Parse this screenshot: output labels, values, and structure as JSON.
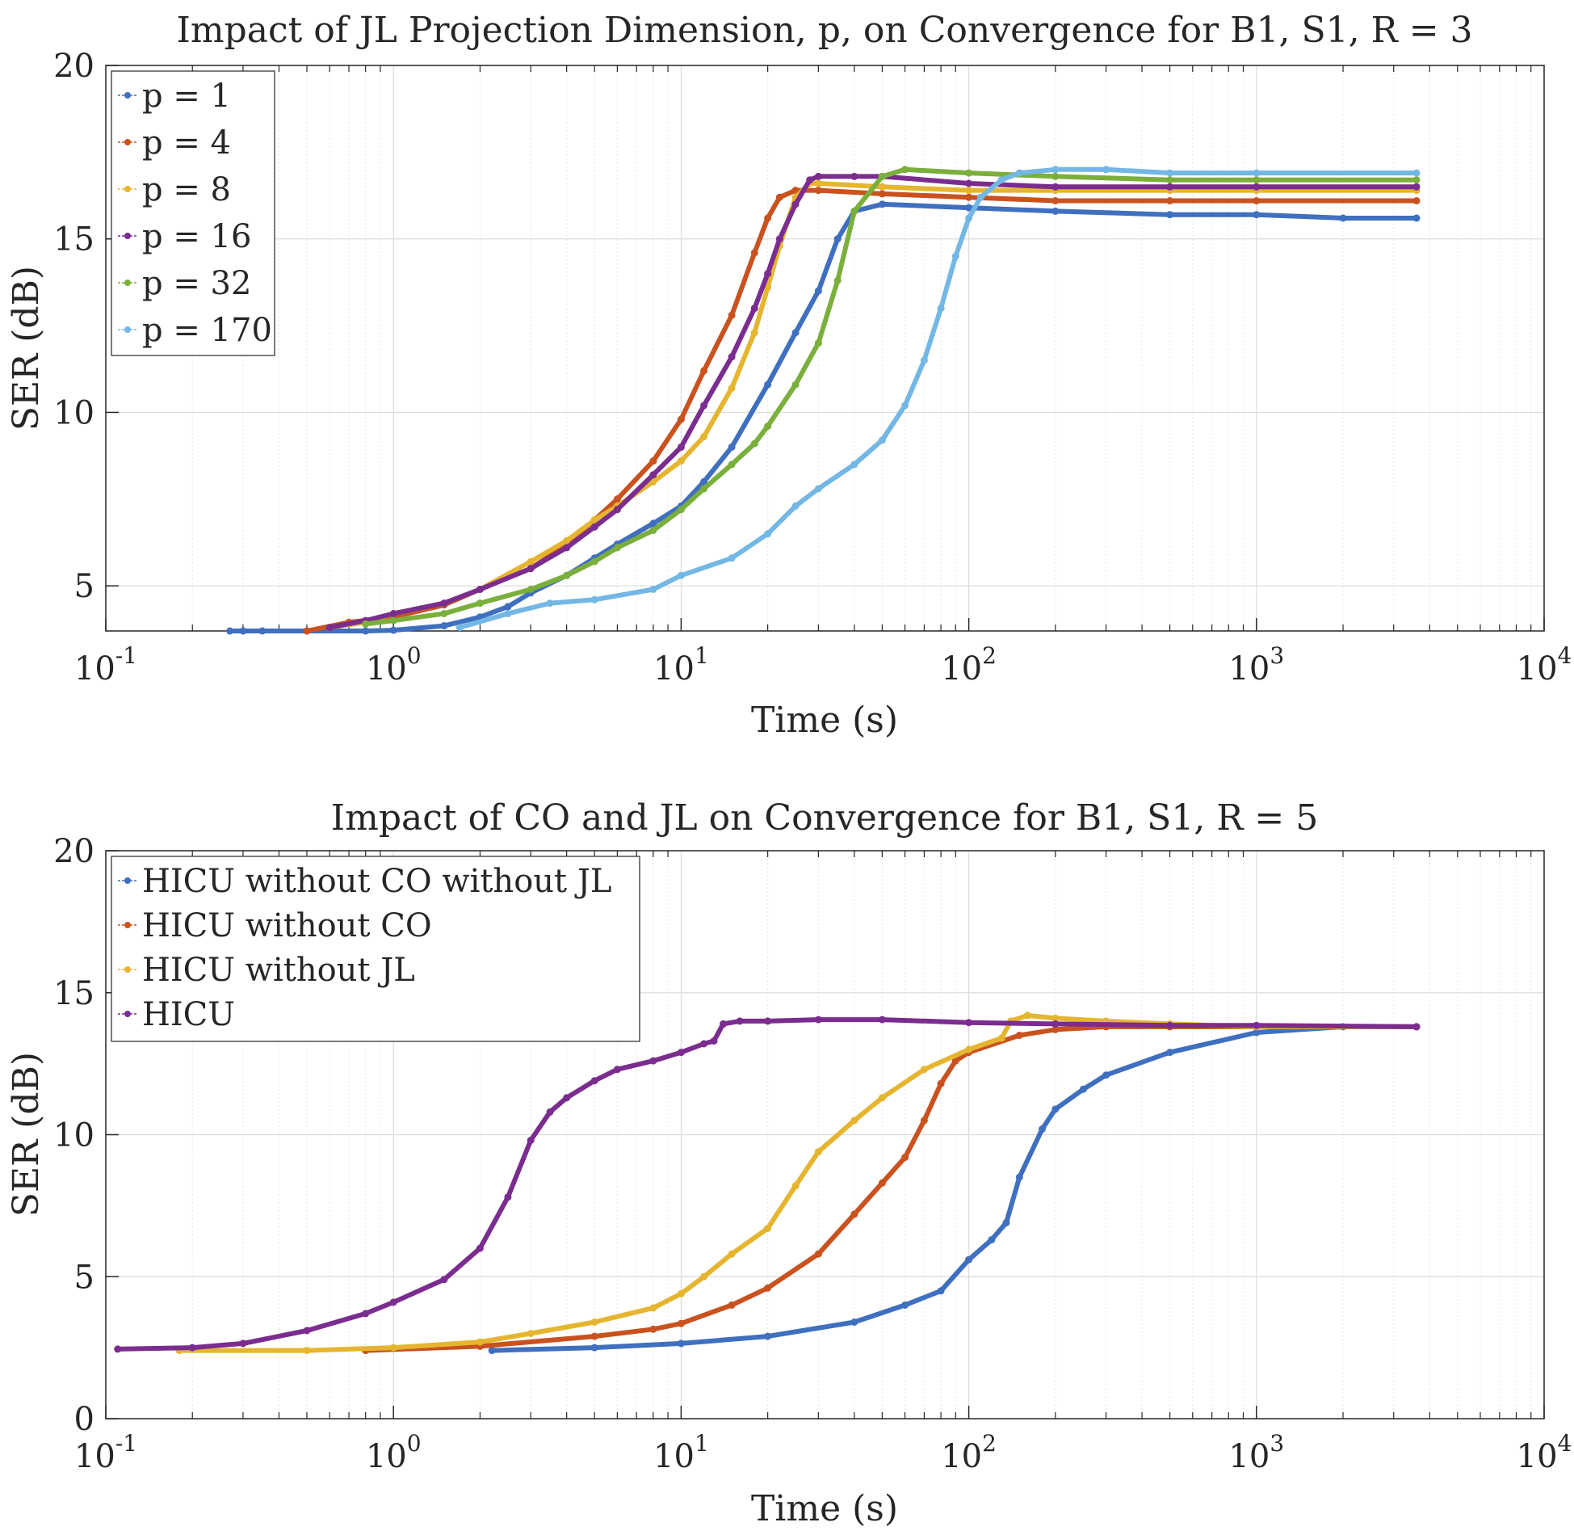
{
  "chart_data": [
    {
      "type": "line",
      "title": "Impact of JL Projection Dimension, p, on Convergence for B1, S1, R = 3",
      "xlabel": "Time (s)",
      "ylabel": "SER (dB)",
      "xscale": "log",
      "xlim": [
        0.1,
        10000
      ],
      "ylim": [
        3.7,
        20
      ],
      "yticks": [
        5,
        10,
        15,
        20
      ],
      "xticks": [
        {
          "value": 0.1,
          "base": "10",
          "exp": "-1"
        },
        {
          "value": 1,
          "base": "10",
          "exp": "0"
        },
        {
          "value": 10,
          "base": "10",
          "exp": "1"
        },
        {
          "value": 100,
          "base": "10",
          "exp": "2"
        },
        {
          "value": 1000,
          "base": "10",
          "exp": "3"
        },
        {
          "value": 10000,
          "base": "10",
          "exp": "4"
        }
      ],
      "grid": true,
      "legend_position": "top-left",
      "series": [
        {
          "name": "p = 1",
          "color": "#3F6FBF",
          "x": [
            0.27,
            0.3,
            0.35,
            0.5,
            0.8,
            1.0,
            1.5,
            2,
            2.5,
            3,
            4,
            5,
            6,
            8,
            10,
            12,
            15,
            20,
            25,
            30,
            35,
            40,
            50,
            100,
            200,
            500,
            1000,
            2000,
            3600
          ],
          "y": [
            3.7,
            3.7,
            3.7,
            3.7,
            3.7,
            3.72,
            3.85,
            4.1,
            4.4,
            4.8,
            5.3,
            5.8,
            6.2,
            6.8,
            7.3,
            8.0,
            9.0,
            10.8,
            12.3,
            13.5,
            15.0,
            15.8,
            16.0,
            15.9,
            15.8,
            15.7,
            15.7,
            15.6,
            15.6
          ]
        },
        {
          "name": "p = 4",
          "color": "#C9521F",
          "x": [
            0.5,
            0.7,
            1.0,
            1.5,
            2,
            3,
            4,
            5,
            6,
            8,
            10,
            12,
            15,
            18,
            20,
            22,
            25,
            30,
            50,
            100,
            200,
            500,
            1000,
            3600
          ],
          "y": [
            3.7,
            3.95,
            4.1,
            4.45,
            4.9,
            5.5,
            6.2,
            6.9,
            7.5,
            8.6,
            9.8,
            11.2,
            12.8,
            14.6,
            15.6,
            16.2,
            16.4,
            16.4,
            16.3,
            16.2,
            16.1,
            16.1,
            16.1,
            16.1
          ]
        },
        {
          "name": "p = 8",
          "color": "#E6B530",
          "x": [
            0.6,
            0.8,
            1.0,
            1.5,
            2,
            3,
            4,
            5,
            6,
            8,
            10,
            12,
            15,
            18,
            20,
            22,
            25,
            28,
            30,
            50,
            100,
            200,
            500,
            1000,
            3600
          ],
          "y": [
            3.8,
            3.95,
            4.2,
            4.5,
            4.9,
            5.7,
            6.3,
            6.9,
            7.3,
            8.0,
            8.6,
            9.3,
            10.7,
            12.3,
            13.6,
            14.8,
            16.2,
            16.6,
            16.6,
            16.5,
            16.4,
            16.4,
            16.4,
            16.4,
            16.4
          ]
        },
        {
          "name": "p = 16",
          "color": "#7A2D8F",
          "x": [
            0.6,
            0.8,
            1.0,
            1.5,
            2,
            3,
            4,
            5,
            6,
            8,
            10,
            12,
            15,
            18,
            20,
            22,
            25,
            28,
            30,
            40,
            50,
            100,
            200,
            500,
            1000,
            3600
          ],
          "y": [
            3.8,
            4.0,
            4.2,
            4.5,
            4.9,
            5.5,
            6.1,
            6.7,
            7.2,
            8.2,
            9.0,
            10.2,
            11.6,
            13.0,
            14.0,
            15.0,
            16.0,
            16.7,
            16.8,
            16.8,
            16.8,
            16.6,
            16.5,
            16.5,
            16.5,
            16.5
          ]
        },
        {
          "name": "p = 32",
          "color": "#7BAF3C",
          "x": [
            0.8,
            1.0,
            1.5,
            2,
            3,
            4,
            5,
            6,
            8,
            10,
            12,
            15,
            18,
            20,
            25,
            30,
            35,
            40,
            50,
            60,
            100,
            200,
            500,
            1000,
            3600
          ],
          "y": [
            3.9,
            4.0,
            4.2,
            4.5,
            4.9,
            5.3,
            5.7,
            6.1,
            6.6,
            7.2,
            7.8,
            8.5,
            9.1,
            9.6,
            10.8,
            12.0,
            13.8,
            15.8,
            16.8,
            17.0,
            16.9,
            16.8,
            16.7,
            16.7,
            16.7
          ]
        },
        {
          "name": "p = 170",
          "color": "#73B7E5",
          "x": [
            1.7,
            2.5,
            3.5,
            5,
            8,
            10,
            15,
            20,
            25,
            30,
            40,
            50,
            60,
            70,
            80,
            90,
            100,
            110,
            130,
            150,
            200,
            300,
            500,
            1000,
            3600
          ],
          "y": [
            3.8,
            4.2,
            4.5,
            4.6,
            4.9,
            5.3,
            5.8,
            6.5,
            7.3,
            7.8,
            8.5,
            9.2,
            10.2,
            11.5,
            13.0,
            14.5,
            15.6,
            16.2,
            16.7,
            16.9,
            17.0,
            17.0,
            16.9,
            16.9,
            16.9
          ]
        }
      ]
    },
    {
      "type": "line",
      "title": "Impact of CO and JL on Convergence for B1, S1, R = 5",
      "xlabel": "Time (s)",
      "ylabel": "SER (dB)",
      "xscale": "log",
      "xlim": [
        0.1,
        10000
      ],
      "ylim": [
        0,
        20
      ],
      "yticks": [
        0,
        5,
        10,
        15,
        20
      ],
      "xticks": [
        {
          "value": 0.1,
          "base": "10",
          "exp": "-1"
        },
        {
          "value": 1,
          "base": "10",
          "exp": "0"
        },
        {
          "value": 10,
          "base": "10",
          "exp": "1"
        },
        {
          "value": 100,
          "base": "10",
          "exp": "2"
        },
        {
          "value": 1000,
          "base": "10",
          "exp": "3"
        },
        {
          "value": 10000,
          "base": "10",
          "exp": "4"
        }
      ],
      "grid": true,
      "legend_position": "top-left",
      "series": [
        {
          "name": "HICU without CO without JL",
          "color": "#3F6FBF",
          "x": [
            2.2,
            5,
            10,
            20,
            40,
            60,
            80,
            100,
            120,
            135,
            150,
            180,
            200,
            250,
            300,
            500,
            1000,
            2000,
            3600
          ],
          "y": [
            2.4,
            2.5,
            2.65,
            2.9,
            3.4,
            4.0,
            4.5,
            5.6,
            6.3,
            6.9,
            8.5,
            10.2,
            10.9,
            11.6,
            12.1,
            12.9,
            13.6,
            13.8,
            13.8
          ]
        },
        {
          "name": "HICU without CO",
          "color": "#C9521F",
          "x": [
            0.8,
            2,
            5,
            8,
            10,
            15,
            20,
            30,
            40,
            50,
            60,
            70,
            80,
            90,
            100,
            150,
            200,
            300,
            500,
            1000,
            3600
          ],
          "y": [
            2.4,
            2.55,
            2.9,
            3.15,
            3.35,
            4.0,
            4.6,
            5.8,
            7.2,
            8.3,
            9.2,
            10.5,
            11.8,
            12.6,
            12.9,
            13.5,
            13.7,
            13.8,
            13.8,
            13.8,
            13.8
          ]
        },
        {
          "name": "HICU without JL",
          "color": "#E6B530",
          "x": [
            0.18,
            0.5,
            1.0,
            2,
            3,
            5,
            8,
            10,
            12,
            15,
            20,
            25,
            30,
            40,
            50,
            70,
            100,
            130,
            140,
            160,
            200,
            300,
            500,
            1000,
            3600
          ],
          "y": [
            2.4,
            2.4,
            2.5,
            2.7,
            3.0,
            3.4,
            3.9,
            4.4,
            5.0,
            5.8,
            6.7,
            8.2,
            9.4,
            10.5,
            11.3,
            12.3,
            13.0,
            13.4,
            14.0,
            14.2,
            14.1,
            14.0,
            13.9,
            13.8,
            13.8
          ]
        },
        {
          "name": "HICU",
          "color": "#7A2D8F",
          "x": [
            0.11,
            0.2,
            0.3,
            0.5,
            0.8,
            1.0,
            1.5,
            2,
            2.5,
            3,
            3.5,
            4,
            5,
            6,
            8,
            10,
            12,
            13,
            14,
            16,
            20,
            30,
            50,
            100,
            200,
            500,
            1000,
            3600
          ],
          "y": [
            2.45,
            2.5,
            2.65,
            3.1,
            3.7,
            4.1,
            4.9,
            6.0,
            7.8,
            9.8,
            10.8,
            11.3,
            11.9,
            12.3,
            12.6,
            12.9,
            13.2,
            13.3,
            13.9,
            14.0,
            14.0,
            14.05,
            14.05,
            13.95,
            13.9,
            13.85,
            13.85,
            13.8
          ]
        }
      ]
    }
  ]
}
